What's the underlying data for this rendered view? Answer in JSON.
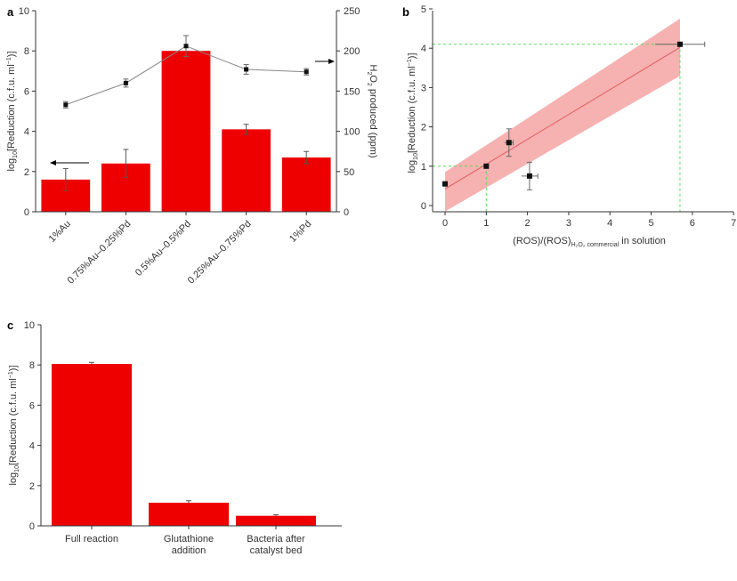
{
  "colors": {
    "bar": "#ee0000",
    "band": "#f5a3a3",
    "guide": "#55dd55",
    "line": "#888888",
    "marker": "#111111"
  },
  "chart_data": [
    {
      "id": "a",
      "panel_label": "a",
      "type": "bar",
      "categories": [
        "1%Au",
        "0.75%Au–0.25%Pd",
        "0.5%Au–0.5%Pd",
        "0.25%Au–0.75%Pd",
        "1%Pd"
      ],
      "ylabel_main": "log",
      "ylabel_sub": "10",
      "ylabel_rest": "[Reduction (c.f.u. ml",
      "ylabel_sup": "−1",
      "ylabel_end": ")]",
      "y2label_main": "H",
      "y2label_sub1": "2",
      "y2label_mid": "O",
      "y2label_sub2": "2",
      "y2label_end": " produced (ppm)",
      "ylim": [
        0,
        10
      ],
      "yticks": [
        0,
        2,
        4,
        6,
        8,
        10
      ],
      "y2lim": [
        0,
        250
      ],
      "y2ticks": [
        0,
        50,
        100,
        150,
        200,
        250
      ],
      "series": [
        {
          "values": [
            1.6,
            2.4,
            8.0,
            4.1,
            2.7
          ],
          "errors": [
            0.55,
            0.7,
            0.0,
            0.25,
            0.3
          ]
        },
        {
          "values": [
            133,
            160,
            206,
            177,
            174
          ],
          "errors": [
            4,
            5,
            13,
            6,
            4
          ],
          "axis": "right"
        }
      ]
    },
    {
      "id": "b",
      "panel_label": "b",
      "type": "scatter",
      "xlabel_main": "(ROS)/(ROS)",
      "xlabel_sub": "H₂O₂ commercial",
      "xlabel_rest": " in solution",
      "ylabel_main": "log",
      "ylabel_sub": "10",
      "ylabel_rest": "[Reduction (c.f.u. ml",
      "ylabel_sup": "−1",
      "ylabel_end": ")]",
      "xlim": [
        0,
        7
      ],
      "xticks": [
        0,
        1,
        2,
        3,
        4,
        5,
        6,
        7
      ],
      "ylim": [
        0,
        5
      ],
      "yticks": [
        0,
        1,
        2,
        3,
        4,
        5
      ],
      "points": [
        {
          "x": 0.0,
          "y": 0.55,
          "xerr": 0.0,
          "yerr": 0.0
        },
        {
          "x": 1.0,
          "y": 1.0,
          "xerr": 0.0,
          "yerr": 0.0
        },
        {
          "x": 1.55,
          "y": 1.6,
          "xerr": 0.1,
          "yerr": 0.35
        },
        {
          "x": 2.05,
          "y": 0.75,
          "xerr": 0.2,
          "yerr": 0.35
        },
        {
          "x": 5.7,
          "y": 4.1,
          "xerr": 0.6,
          "yerr": 0.0
        }
      ],
      "fit": {
        "x": [
          0.0,
          5.7
        ],
        "y": [
          0.42,
          4.02
        ]
      },
      "band": {
        "x": [
          0.0,
          5.7
        ],
        "upper": [
          0.85,
          4.75
        ],
        "lower": [
          -0.15,
          3.3
        ]
      },
      "guides": [
        {
          "x": 1.0,
          "y": 1.0
        },
        {
          "x": 5.7,
          "y": 4.1
        }
      ]
    },
    {
      "id": "c",
      "panel_label": "c",
      "type": "bar",
      "categories": [
        [
          "Full reaction"
        ],
        [
          "Glutathione",
          "addition"
        ],
        [
          "Bacteria after",
          "catalyst bed"
        ]
      ],
      "ylabel_main": "log",
      "ylabel_sub": "10",
      "ylabel_rest": "[Reduction (c.f.u. ml",
      "ylabel_sup": "−1",
      "ylabel_end": ")]",
      "ylim": [
        0,
        10
      ],
      "yticks": [
        0,
        2,
        4,
        6,
        8,
        10
      ],
      "values": [
        8.05,
        1.15,
        0.5
      ],
      "errors": [
        0.08,
        0.1,
        0.05
      ]
    }
  ]
}
